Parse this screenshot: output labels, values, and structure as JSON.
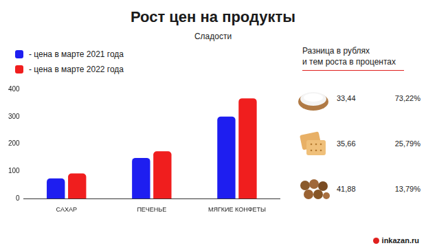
{
  "chart_data": {
    "type": "bar",
    "title": "Рост цен на продукты",
    "subtitle": "Сладости",
    "categories": [
      "САХАР",
      "ПЕЧЕНЬЕ",
      "МЯГКИЕ КОНФЕТЫ"
    ],
    "series": [
      {
        "name": "- цена в марте 2021 года",
        "color": "#1e1ef0",
        "values": [
          74,
          149,
          300
        ]
      },
      {
        "name": "- цена в марте 2022 года",
        "color": "#f01e1e",
        "values": [
          92,
          173,
          367
        ]
      }
    ],
    "ylim": [
      0,
      400
    ],
    "yticks": [
      0,
      100,
      200,
      300,
      400
    ],
    "grid": false,
    "legend": "top-left"
  },
  "side_table": {
    "title": [
      "Разница в рублях",
      "и тем роста в процентах"
    ],
    "rows": [
      {
        "rub": {
          "value": 33.44,
          "label": "33,44"
        },
        "pct": {
          "value": 73.22,
          "label": "73,22%"
        }
      },
      {
        "rub": {
          "value": 35.66,
          "label": "35,66"
        },
        "pct": {
          "value": 25.79,
          "label": "25,79%"
        }
      },
      {
        "rub": {
          "value": 41.88,
          "label": "41,88"
        },
        "pct": {
          "value": 13.79,
          "label": "13,79%"
        }
      }
    ]
  },
  "source": "inkazan.ru"
}
